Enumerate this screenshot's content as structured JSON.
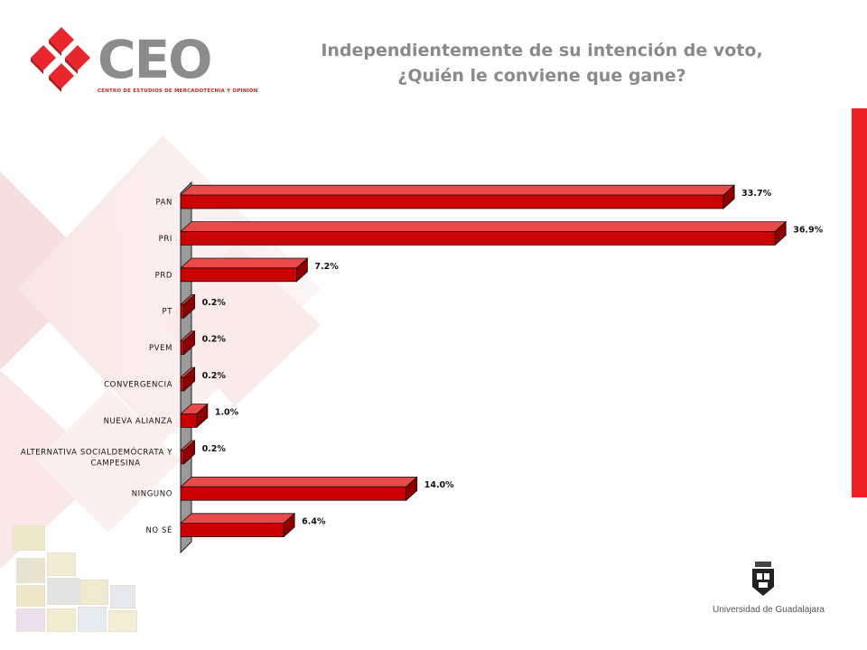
{
  "header": {
    "title_line1": "Independientemente de su intención de voto,",
    "title_line2": "¿Quién le conviene que gane?"
  },
  "logo": {
    "text": "CEO",
    "subtitle": "CENTRO DE ESTUDIOS DE MERCADOTECNIA Y OPINIÓN"
  },
  "footer": {
    "university": "Universidad de Guadalajara"
  },
  "colors": {
    "bar": "#cc0000",
    "accent": "#ee2222",
    "title": "#8a8a8a"
  },
  "chart_data": {
    "type": "bar",
    "orientation": "horizontal",
    "categories": [
      "PAN",
      "PRI",
      "PRD",
      "PT",
      "PVEM",
      "CONVERGENCIA",
      "NUEVA ALIANZA",
      [
        "ALTERNATIVA SOCIALDEMÓCRATA Y",
        "CAMPESINA"
      ],
      "NINGUNO",
      "NO SÉ"
    ],
    "values": [
      33.7,
      36.9,
      7.2,
      0.2,
      0.2,
      0.2,
      1.0,
      0.2,
      14.0,
      6.4
    ],
    "value_labels": [
      "33.7%",
      "36.9%",
      "7.2%",
      "0.2%",
      "0.2%",
      "0.2%",
      "1.0%",
      "0.2%",
      "14.0%",
      "6.4%"
    ],
    "xlim": [
      0,
      37
    ],
    "grid": false,
    "style": "3d"
  }
}
